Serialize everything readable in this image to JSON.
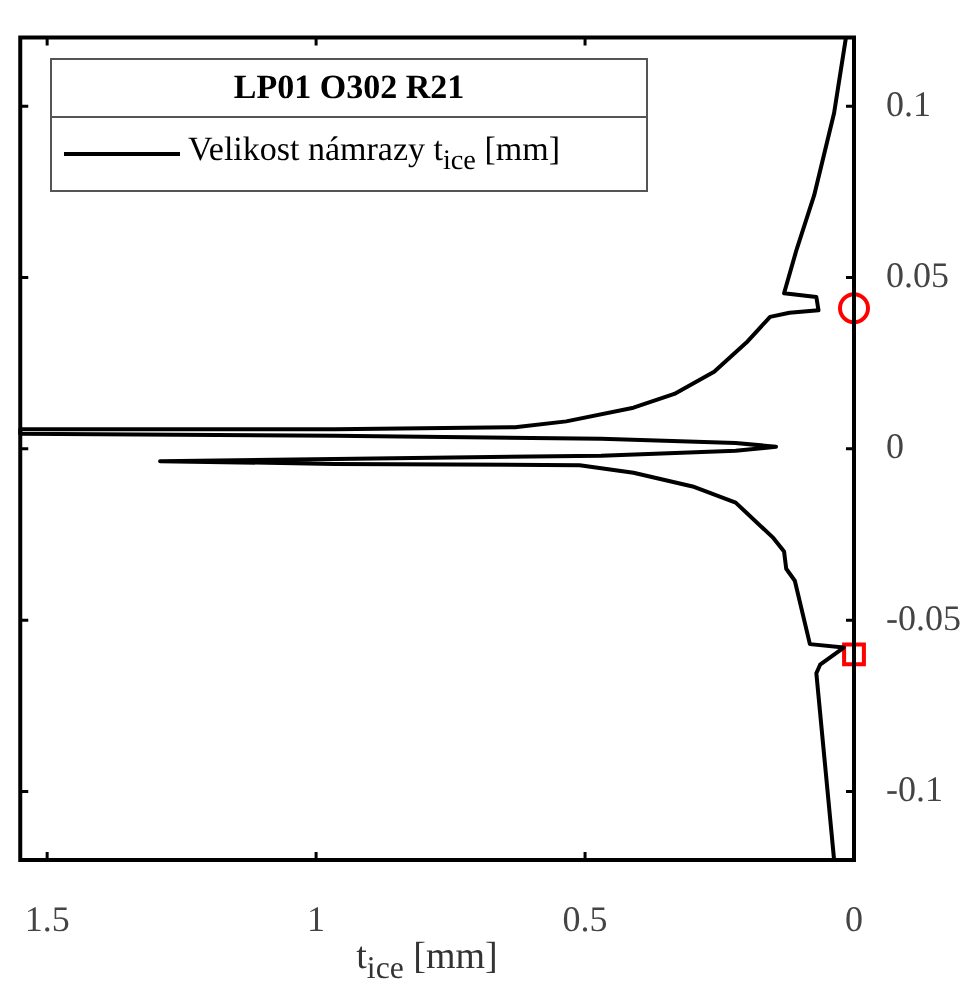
{
  "chart_data": {
    "type": "line",
    "xlabel": "t$_{ice}$ [mm]",
    "legend_title": "LP01 O302 R21",
    "legend": "top left",
    "xlim": [
      1.55,
      0
    ],
    "ylim": [
      -0.12,
      0.12
    ],
    "xticks": [
      1.5,
      1,
      0.5,
      0
    ],
    "yticks": [
      -0.1,
      -0.05,
      0,
      0.05,
      0.1
    ],
    "grid": false,
    "series": [
      {
        "name": "Velikost námrazy t$_{ice}$ [mm]",
        "color": "#000000",
        "marker": "none",
        "x": [
          0.015,
          0.037,
          0.074,
          0.107,
          0.13,
          0.07,
          0.066,
          0.12,
          0.156,
          0.2,
          0.26,
          0.334,
          0.41,
          0.535,
          0.63,
          0.965,
          1.55,
          1.55,
          0.965,
          0.47,
          0.22,
          0.145,
          0.22,
          0.47,
          0.965,
          1.29,
          0.965,
          0.51,
          0.41,
          0.3,
          0.22,
          0.15,
          0.13,
          0.126,
          0.11,
          0.082,
          0.019,
          0.063,
          0.07,
          0.037
        ],
        "values": [
          0.12,
          0.098,
          0.074,
          0.058,
          0.0454,
          0.0443,
          0.0404,
          0.0397,
          0.0385,
          0.031,
          0.0225,
          0.016,
          0.012,
          0.008,
          0.0063,
          0.0057,
          0.0057,
          0.0044,
          0.0038,
          0.0029,
          0.0017,
          0.0006,
          -0.0006,
          -0.002,
          -0.003,
          -0.0036,
          -0.0044,
          -0.0048,
          -0.007,
          -0.011,
          -0.0157,
          -0.026,
          -0.03,
          -0.035,
          -0.0385,
          -0.057,
          -0.058,
          -0.063,
          -0.0655,
          -0.12
        ]
      },
      {
        "type": "scatter",
        "color": "#ff0000",
        "marker": "circle",
        "x": [
          0
        ],
        "values": [
          0.041
        ]
      },
      {
        "type": "scatter",
        "color": "#ff0000",
        "marker": "square",
        "x": [
          0
        ],
        "values": [
          -0.06
        ]
      }
    ]
  }
}
